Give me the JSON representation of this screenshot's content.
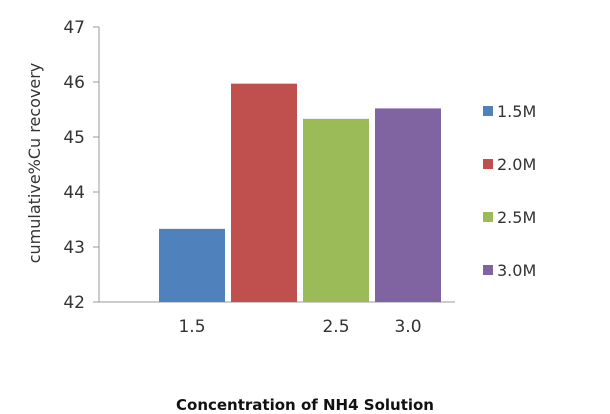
{
  "chart_data": {
    "type": "bar",
    "title": "",
    "xlabel": "Concentration of NH4 Solution",
    "ylabel": "cumulative%Cu recovery",
    "ylim": [
      42,
      47
    ],
    "yticks": [
      "42",
      "43",
      "44",
      "45",
      "46",
      "47"
    ],
    "xtick_labels": [
      "1.5",
      "",
      "2.5",
      "3.0"
    ],
    "series": [
      {
        "name": "1.5M",
        "value": 43.33,
        "color": "#4F81BD"
      },
      {
        "name": "2.0M",
        "value": 45.97,
        "color": "#C0504D"
      },
      {
        "name": "2.5M",
        "value": 45.33,
        "color": "#9BBB59"
      },
      {
        "name": "3.0M",
        "value": 45.52,
        "color": "#8064A2"
      }
    ],
    "legend_position": "right",
    "grid": false
  }
}
